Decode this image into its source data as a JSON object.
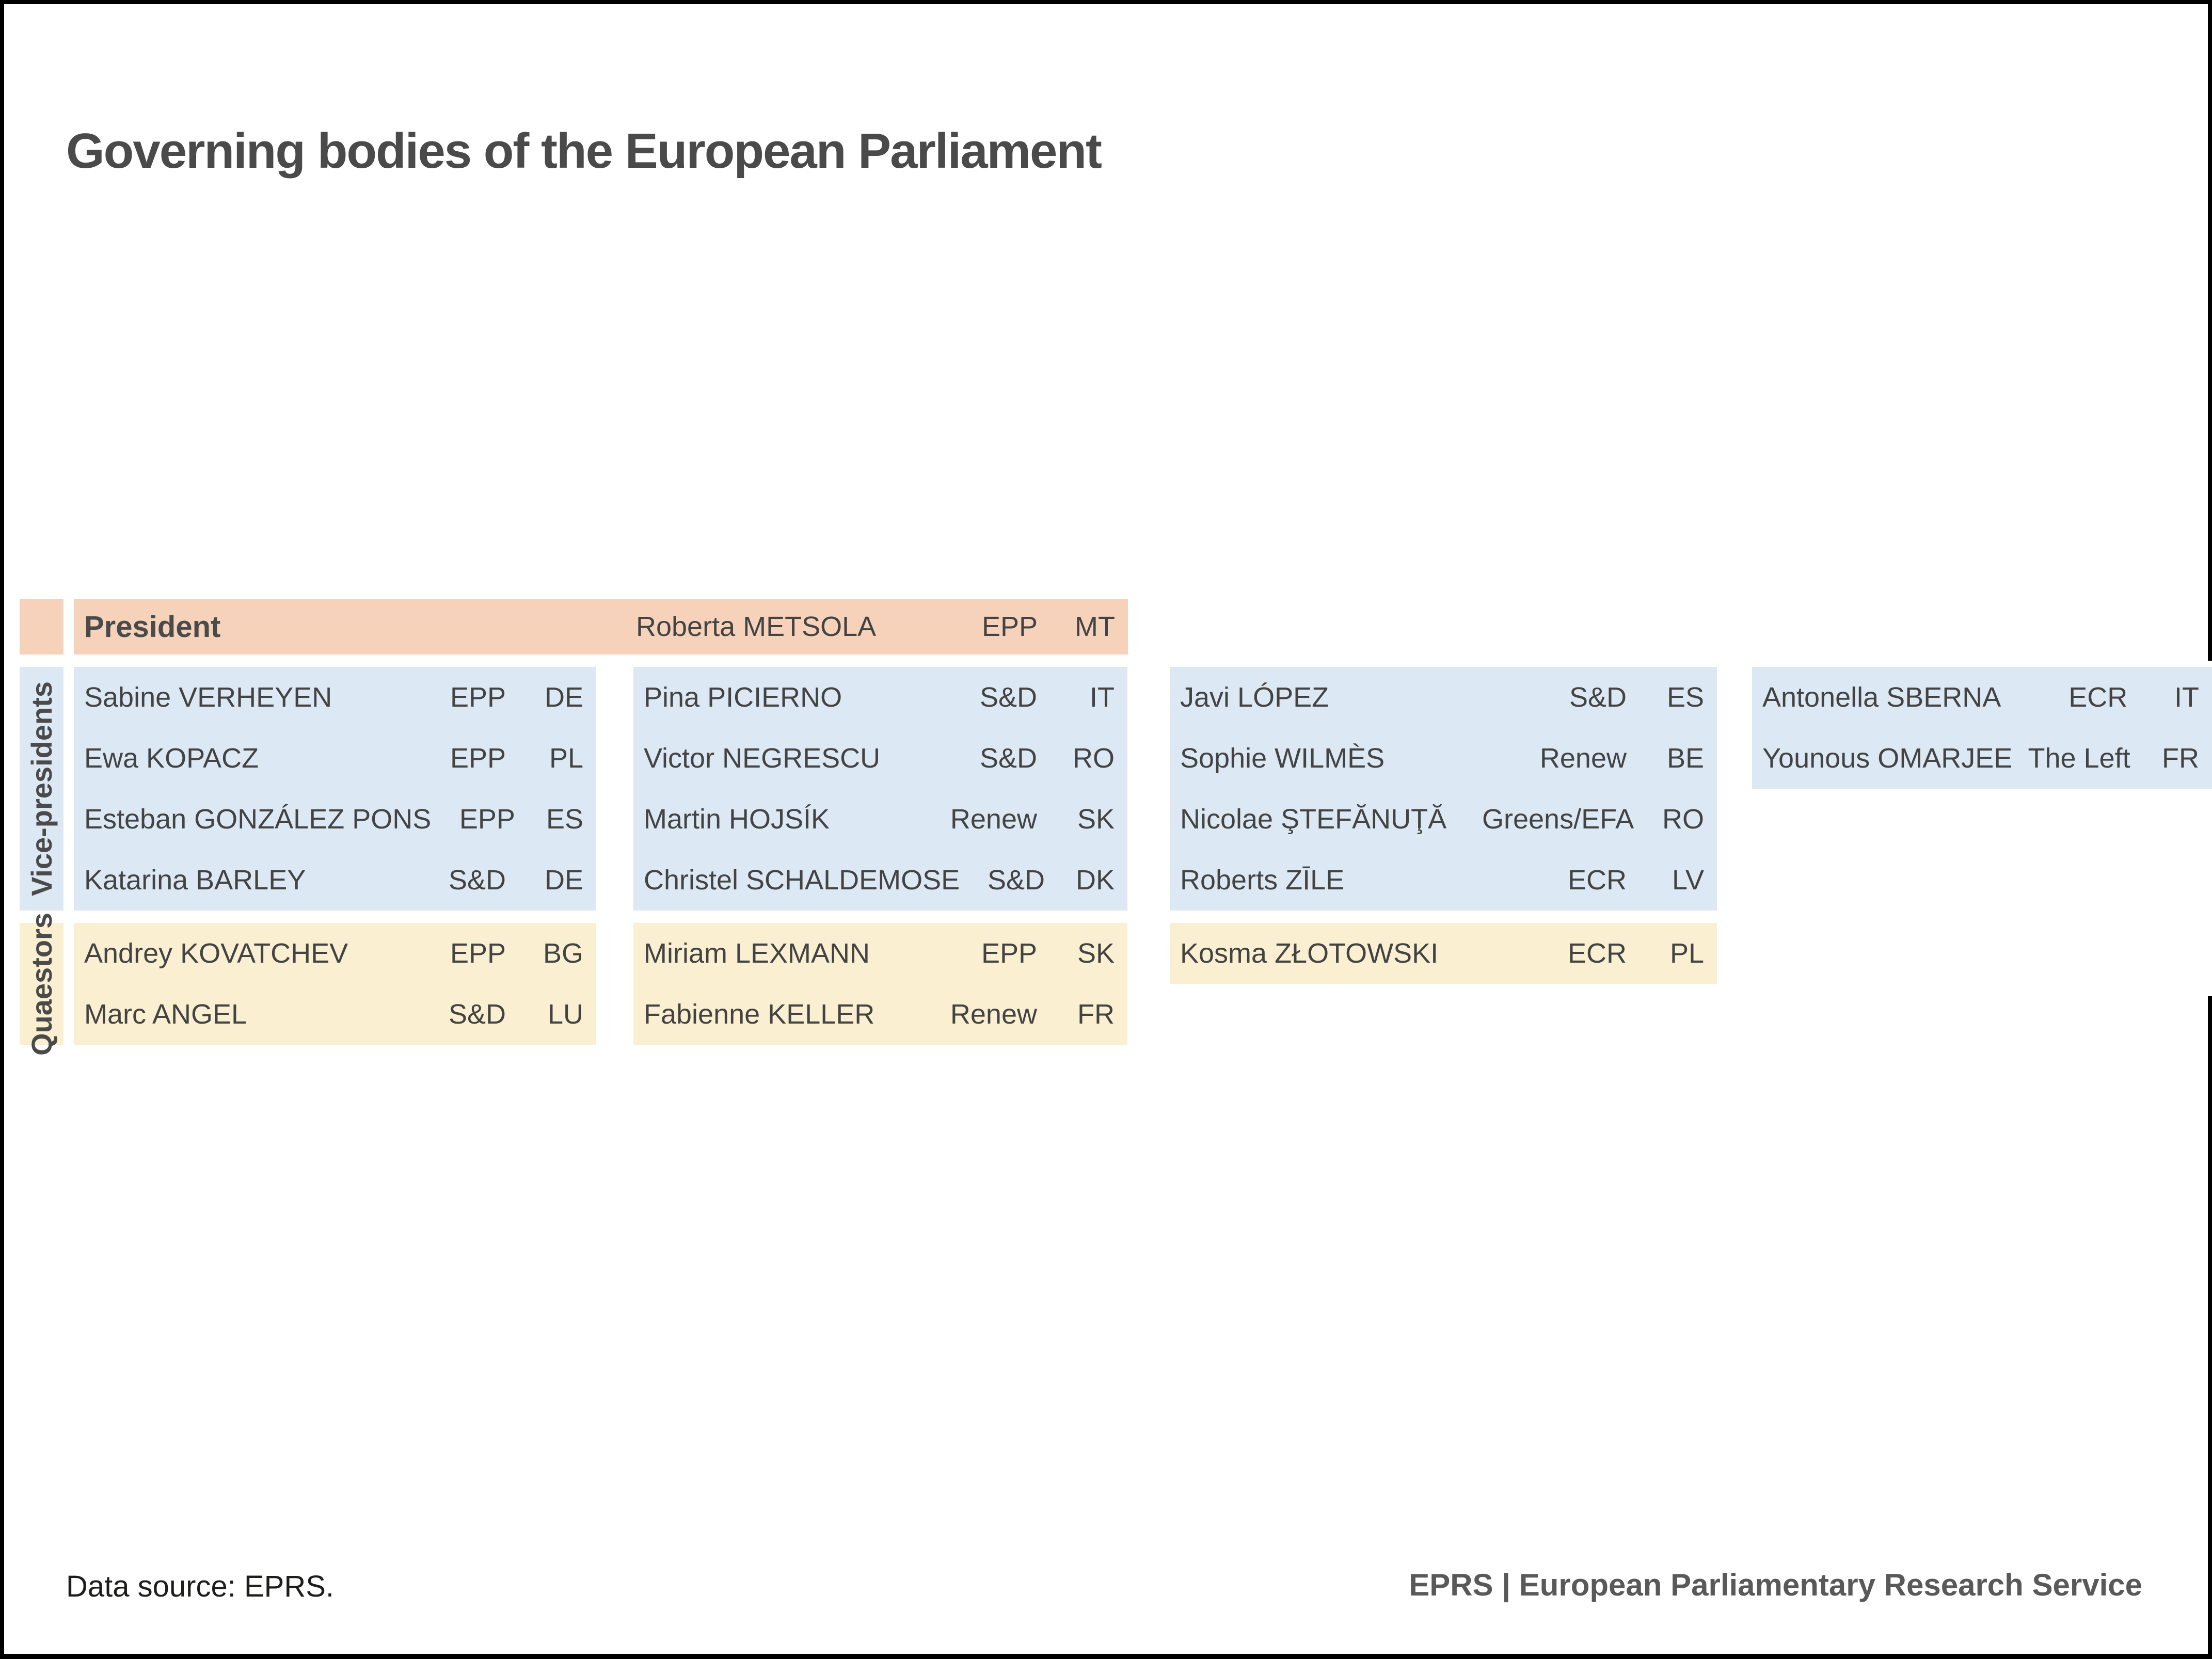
{
  "title": "Governing bodies of the European Parliament",
  "colors": {
    "president_bg": "#f6d2ba",
    "vice_presidents_bg": "#dce8f4",
    "quaestors_bg": "#faefd1",
    "text": "#434343",
    "title_text": "#4a4a4a",
    "footer_credit_text": "#595959",
    "frame": "#000000"
  },
  "sections": {
    "president": {
      "label": "President",
      "member": {
        "name": "Roberta METSOLA",
        "group": "EPP",
        "country": "MT"
      }
    },
    "vice_presidents": {
      "label": "Vice-presidents",
      "columns": [
        [
          {
            "name": "Sabine VERHEYEN",
            "group": "EPP",
            "country": "DE"
          },
          {
            "name": "Ewa KOPACZ",
            "group": "EPP",
            "country": "PL"
          },
          {
            "name": "Esteban GONZÁLEZ PONS",
            "group": "EPP",
            "country": "ES"
          },
          {
            "name": "Katarina BARLEY",
            "group": "S&D",
            "country": "DE"
          }
        ],
        [
          {
            "name": "Pina PICIERNO",
            "group": "S&D",
            "country": "IT"
          },
          {
            "name": "Victor NEGRESCU",
            "group": "S&D",
            "country": "RO"
          },
          {
            "name": "Martin HOJSÍK",
            "group": "Renew",
            "country": "SK"
          },
          {
            "name": "Christel SCHALDEMOSE",
            "group": "S&D",
            "country": "DK"
          }
        ],
        [
          {
            "name": "Javi LÓPEZ",
            "group": "S&D",
            "country": "ES"
          },
          {
            "name": "Sophie WILMÈS",
            "group": "Renew",
            "country": "BE"
          },
          {
            "name": "Nicolae ŞTEFĂNUŢĂ",
            "group": "Greens/EFA",
            "country": "RO"
          },
          {
            "name": "Roberts ZĪLE",
            "group": "ECR",
            "country": "LV"
          }
        ],
        [
          {
            "name": "Antonella SBERNA",
            "group": "ECR",
            "country": "IT"
          },
          {
            "name": "Younous OMARJEE",
            "group": "The Left",
            "country": "FR"
          }
        ]
      ]
    },
    "quaestors": {
      "label": "Quaestors",
      "columns": [
        [
          {
            "name": "Andrey KOVATCHEV",
            "group": "EPP",
            "country": "BG"
          },
          {
            "name": "Marc ANGEL",
            "group": "S&D",
            "country": "LU"
          }
        ],
        [
          {
            "name": "Miriam LEXMANN",
            "group": "EPP",
            "country": "SK"
          },
          {
            "name": "Fabienne KELLER",
            "group": "Renew",
            "country": "FR"
          }
        ],
        [
          {
            "name": "Kosma ZŁOTOWSKI",
            "group": "ECR",
            "country": "PL"
          }
        ]
      ]
    }
  },
  "footer": {
    "source": "Data source: EPRS.",
    "credit": "EPRS | European Parliamentary Research Service"
  }
}
